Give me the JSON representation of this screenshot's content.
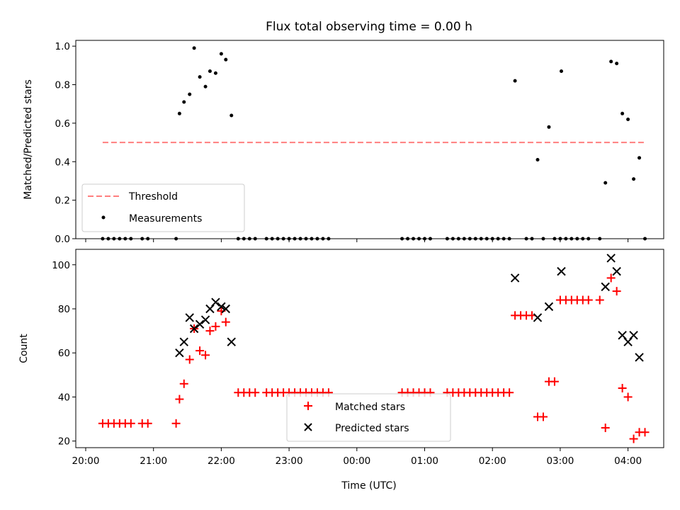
{
  "chart_data": [
    {
      "type": "scatter",
      "title": "Flux total observing time = 0.00 h",
      "xlabel": "",
      "ylabel": "Matched/Predicted stars",
      "xlim": [
        "20:00",
        "04:40"
      ],
      "ylim": [
        0,
        1.03
      ],
      "x_ticks": [
        "20:00",
        "21:00",
        "22:00",
        "23:00",
        "00:00",
        "01:00",
        "02:00",
        "03:00",
        "04:00"
      ],
      "y_ticks": [
        "0.0",
        "0.2",
        "0.4",
        "0.6",
        "0.8",
        "1.0"
      ],
      "legend_position": "lower-left",
      "threshold": {
        "name": "Threshold",
        "value": 0.5,
        "x_start": "20:15",
        "x_end": "04:15",
        "color": "#ff7f7f"
      },
      "series": [
        {
          "name": "Measurements",
          "color": "#000000",
          "marker": "dot",
          "points": [
            [
              "20:15",
              0
            ],
            [
              "20:20",
              0
            ],
            [
              "20:25",
              0
            ],
            [
              "20:30",
              0
            ],
            [
              "20:35",
              0
            ],
            [
              "20:40",
              0
            ],
            [
              "20:50",
              0
            ],
            [
              "20:55",
              0
            ],
            [
              "21:20",
              0
            ],
            [
              "21:23",
              0.65
            ],
            [
              "21:27",
              0.71
            ],
            [
              "21:32",
              0.75
            ],
            [
              "21:36",
              0.99
            ],
            [
              "21:41",
              0.84
            ],
            [
              "21:46",
              0.79
            ],
            [
              "21:50",
              0.87
            ],
            [
              "21:55",
              0.86
            ],
            [
              "22:00",
              0.96
            ],
            [
              "22:04",
              0.93
            ],
            [
              "22:09",
              0.64
            ],
            [
              "22:15",
              0
            ],
            [
              "22:20",
              0
            ],
            [
              "22:25",
              0
            ],
            [
              "22:30",
              0
            ],
            [
              "22:40",
              0
            ],
            [
              "22:45",
              0
            ],
            [
              "22:50",
              0
            ],
            [
              "22:55",
              0
            ],
            [
              "23:00",
              0
            ],
            [
              "23:05",
              0
            ],
            [
              "23:10",
              0
            ],
            [
              "23:15",
              0
            ],
            [
              "23:20",
              0
            ],
            [
              "23:25",
              0
            ],
            [
              "23:30",
              0
            ],
            [
              "23:35",
              0
            ],
            [
              "00:40",
              0
            ],
            [
              "00:45",
              0
            ],
            [
              "00:50",
              0
            ],
            [
              "00:55",
              0
            ],
            [
              "01:00",
              0
            ],
            [
              "01:05",
              0
            ],
            [
              "01:20",
              0
            ],
            [
              "01:25",
              0
            ],
            [
              "01:30",
              0
            ],
            [
              "01:35",
              0
            ],
            [
              "01:40",
              0
            ],
            [
              "01:45",
              0
            ],
            [
              "01:50",
              0
            ],
            [
              "01:55",
              0
            ],
            [
              "02:00",
              0
            ],
            [
              "02:05",
              0
            ],
            [
              "02:10",
              0
            ],
            [
              "02:15",
              0
            ],
            [
              "02:20",
              0.82
            ],
            [
              "02:30",
              0
            ],
            [
              "02:35",
              0
            ],
            [
              "02:40",
              0.41
            ],
            [
              "02:45",
              0
            ],
            [
              "02:50",
              0.58
            ],
            [
              "02:55",
              0
            ],
            [
              "03:00",
              0
            ],
            [
              "03:01",
              0.87
            ],
            [
              "03:05",
              0
            ],
            [
              "03:10",
              0
            ],
            [
              "03:15",
              0
            ],
            [
              "03:20",
              0
            ],
            [
              "03:25",
              0
            ],
            [
              "03:35",
              0
            ],
            [
              "03:40",
              0.29
            ],
            [
              "03:45",
              0.92
            ],
            [
              "03:50",
              0.91
            ],
            [
              "03:55",
              0.65
            ],
            [
              "04:00",
              0.62
            ],
            [
              "04:05",
              0.31
            ],
            [
              "04:10",
              0.42
            ],
            [
              "04:15",
              0
            ]
          ]
        }
      ]
    },
    {
      "type": "scatter",
      "title": "",
      "xlabel": "Time (UTC)",
      "ylabel": "Count",
      "xlim": [
        "20:00",
        "04:40"
      ],
      "ylim": [
        17,
        107
      ],
      "x_ticks": [
        "20:00",
        "21:00",
        "22:00",
        "23:00",
        "00:00",
        "01:00",
        "02:00",
        "03:00",
        "04:00"
      ],
      "y_ticks": [
        "20",
        "40",
        "60",
        "80",
        "100"
      ],
      "legend_position": "lower-center",
      "series": [
        {
          "name": "Matched stars",
          "color": "#ff0000",
          "marker": "plus",
          "points": [
            [
              "20:15",
              28
            ],
            [
              "20:20",
              28
            ],
            [
              "20:25",
              28
            ],
            [
              "20:30",
              28
            ],
            [
              "20:35",
              28
            ],
            [
              "20:40",
              28
            ],
            [
              "20:50",
              28
            ],
            [
              "20:55",
              28
            ],
            [
              "21:20",
              28
            ],
            [
              "21:23",
              39
            ],
            [
              "21:27",
              46
            ],
            [
              "21:32",
              57
            ],
            [
              "21:36",
              71
            ],
            [
              "21:41",
              61
            ],
            [
              "21:46",
              59
            ],
            [
              "21:50",
              70
            ],
            [
              "21:55",
              72
            ],
            [
              "22:00",
              79
            ],
            [
              "22:04",
              74
            ],
            [
              "22:15",
              42
            ],
            [
              "22:20",
              42
            ],
            [
              "22:25",
              42
            ],
            [
              "22:30",
              42
            ],
            [
              "22:40",
              42
            ],
            [
              "22:45",
              42
            ],
            [
              "22:50",
              42
            ],
            [
              "22:55",
              42
            ],
            [
              "23:00",
              42
            ],
            [
              "23:05",
              42
            ],
            [
              "23:10",
              42
            ],
            [
              "23:15",
              42
            ],
            [
              "23:20",
              42
            ],
            [
              "23:25",
              42
            ],
            [
              "23:30",
              42
            ],
            [
              "23:35",
              42
            ],
            [
              "00:40",
              42
            ],
            [
              "00:45",
              42
            ],
            [
              "00:50",
              42
            ],
            [
              "00:55",
              42
            ],
            [
              "01:00",
              42
            ],
            [
              "01:05",
              42
            ],
            [
              "01:20",
              42
            ],
            [
              "01:25",
              42
            ],
            [
              "01:30",
              42
            ],
            [
              "01:35",
              42
            ],
            [
              "01:40",
              42
            ],
            [
              "01:45",
              42
            ],
            [
              "01:50",
              42
            ],
            [
              "01:55",
              42
            ],
            [
              "02:00",
              42
            ],
            [
              "02:05",
              42
            ],
            [
              "02:10",
              42
            ],
            [
              "02:15",
              42
            ],
            [
              "02:20",
              77
            ],
            [
              "02:25",
              77
            ],
            [
              "02:30",
              77
            ],
            [
              "02:35",
              77
            ],
            [
              "02:40",
              31
            ],
            [
              "02:45",
              31
            ],
            [
              "02:50",
              47
            ],
            [
              "02:55",
              47
            ],
            [
              "03:00",
              84
            ],
            [
              "03:05",
              84
            ],
            [
              "03:10",
              84
            ],
            [
              "03:15",
              84
            ],
            [
              "03:20",
              84
            ],
            [
              "03:25",
              84
            ],
            [
              "03:35",
              84
            ],
            [
              "03:40",
              26
            ],
            [
              "03:45",
              94
            ],
            [
              "03:50",
              88
            ],
            [
              "03:55",
              44
            ],
            [
              "04:00",
              40
            ],
            [
              "04:05",
              21
            ],
            [
              "04:10",
              24
            ],
            [
              "04:15",
              24
            ]
          ]
        },
        {
          "name": "Predicted stars",
          "color": "#000000",
          "marker": "x",
          "points": [
            [
              "21:23",
              60
            ],
            [
              "21:27",
              65
            ],
            [
              "21:32",
              76
            ],
            [
              "21:36",
              71
            ],
            [
              "21:41",
              73
            ],
            [
              "21:46",
              75
            ],
            [
              "21:50",
              80
            ],
            [
              "21:55",
              83
            ],
            [
              "22:00",
              81
            ],
            [
              "22:04",
              80
            ],
            [
              "22:09",
              65
            ],
            [
              "02:20",
              94
            ],
            [
              "02:40",
              76
            ],
            [
              "02:50",
              81
            ],
            [
              "03:01",
              97
            ],
            [
              "03:40",
              90
            ],
            [
              "03:45",
              103
            ],
            [
              "03:50",
              97
            ],
            [
              "03:55",
              68
            ],
            [
              "04:00",
              65
            ],
            [
              "04:05",
              68
            ],
            [
              "04:10",
              58
            ]
          ]
        }
      ]
    }
  ]
}
